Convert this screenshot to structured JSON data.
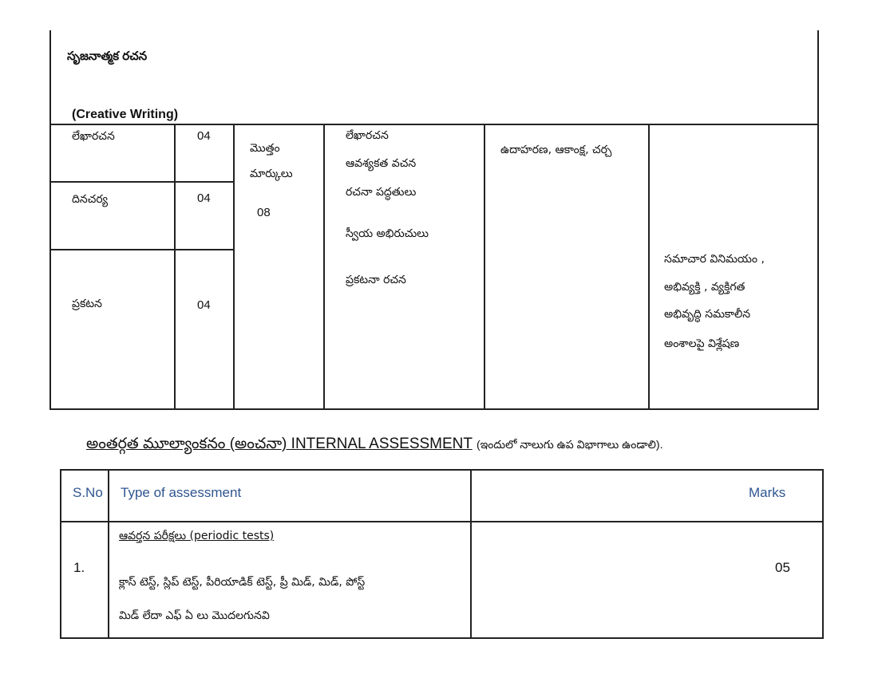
{
  "creative_writing": {
    "title_telugu": "సృజనాత్మక రచన",
    "title_english": "(Creative Writing)",
    "rows": [
      {
        "topic": "లేఖారచన",
        "marks": "04"
      },
      {
        "topic": "దినచర్య",
        "marks": "04"
      },
      {
        "topic": "ప్రకటన",
        "marks": "04"
      }
    ],
    "total_label_1": "మొత్తం",
    "total_label_2": "మార్కులు",
    "total_value": "08",
    "skills": [
      "లేఖారచన",
      "ఆవశ్యకత వచన",
      "రచనా  పద్ధతులు",
      "స్వీయ అభిరుచులు",
      "ప్రకటనా రచన"
    ],
    "methods": "ఉదాహరణ, ఆకాంక్ష, చర్చ",
    "outcomes": [
      "సమాచార వినిమయం ,",
      "అభివ్యక్తి , వ్యక్తిగత",
      "అభివృద్ధి సమకాలీన",
      "అంశాలపై విశ్లేషణ"
    ]
  },
  "internal_assessment": {
    "heading": "అంతర్గత మూల్యాంకనం (అంచనా) INTERNAL ASSESSMENT",
    "heading_note": "(ఇందులో నాలుగు ఉప విభాగాలు ఉండాలి).",
    "columns": [
      "S.No",
      "Type of assessment",
      "Marks"
    ],
    "rows": [
      {
        "sno": "1.",
        "title": "ఆవర్తన  పరీక్షలు (periodic tests)",
        "desc_1": "క్లాస్ టెస్ట్, స్లిప్ టెస్ట్, పీరియాడిక్ టెస్ట్, ప్రీ మిడ్, మిడ్, పోస్ట్",
        "desc_2": "మిడ్ లేదా ఎఫ్ ఏ లు మొదలగునవి",
        "marks": "05"
      }
    ],
    "header_color": "#2f5590"
  }
}
